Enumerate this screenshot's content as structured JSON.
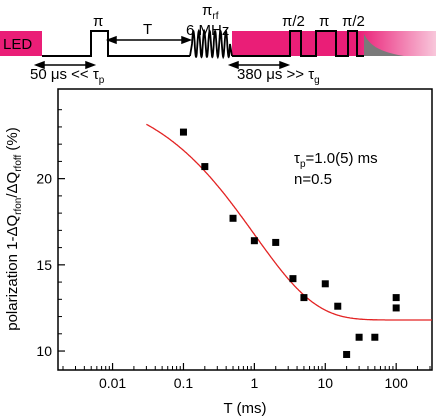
{
  "colors": {
    "pink": "#ea1e77",
    "pink_light": "#f8c7db",
    "fit": "#e32323",
    "marker": "#000000",
    "decay": "#7a7a7a"
  },
  "sequence": {
    "led_label": "LED",
    "pi_label": "π",
    "t_label": "T",
    "rf_pi_base": "π",
    "rf_pi_sub": "rf",
    "rf_freq": "6 MHz",
    "pulse_half1": "π/2",
    "pulse_pi": "π",
    "pulse_half2": "π/2",
    "delay1_prefix": "50 μs << τ",
    "delay1_sub": "p",
    "delay2_prefix": "380 μs >> τ",
    "delay2_sub": "g"
  },
  "annotation": {
    "tau_base": "τ",
    "tau_sub": "p",
    "tau_value": "=1.0(5) ms",
    "n_text": "n=0.5"
  },
  "chart_data": {
    "type": "scatter",
    "xlabel": "T (ms)",
    "ylabel_parts": {
      "p1": "polarization 1-ΔQ",
      "sub1": "rfon",
      "p2": "/ΔQ",
      "sub2": "rfoff",
      "p3": " (%)"
    },
    "xscale": "log",
    "xlim": [
      0.0017,
      320
    ],
    "ylim": [
      8.9,
      25.2
    ],
    "x_ticks": [
      {
        "value": 0.01,
        "label": "0.01"
      },
      {
        "value": 0.1,
        "label": "0.1"
      },
      {
        "value": 1,
        "label": "1"
      },
      {
        "value": 10,
        "label": "10"
      },
      {
        "value": 100,
        "label": "100"
      }
    ],
    "y_ticks": [
      {
        "value": 10,
        "label": "10"
      },
      {
        "value": 15,
        "label": "15"
      },
      {
        "value": 20,
        "label": "20"
      }
    ],
    "points": [
      {
        "x": 0.1,
        "y": 22.7
      },
      {
        "x": 0.2,
        "y": 20.7
      },
      {
        "x": 0.5,
        "y": 17.7
      },
      {
        "x": 1.0,
        "y": 16.4
      },
      {
        "x": 2.0,
        "y": 16.3
      },
      {
        "x": 3.5,
        "y": 14.2
      },
      {
        "x": 5.0,
        "y": 13.1
      },
      {
        "x": 10,
        "y": 13.9
      },
      {
        "x": 15,
        "y": 12.6
      },
      {
        "x": 20,
        "y": 9.8
      },
      {
        "x": 30,
        "y": 10.8
      },
      {
        "x": 50,
        "y": 10.8
      },
      {
        "x": 100,
        "y": 13.1
      },
      {
        "x": 100,
        "y": 12.5
      }
    ],
    "fit": {
      "model": "stretched exponential",
      "tau_p": 1.0,
      "n": 0.5,
      "amplitude": 13.5,
      "offset": 11.8,
      "x_start": 0.03,
      "x_end": 320
    }
  }
}
